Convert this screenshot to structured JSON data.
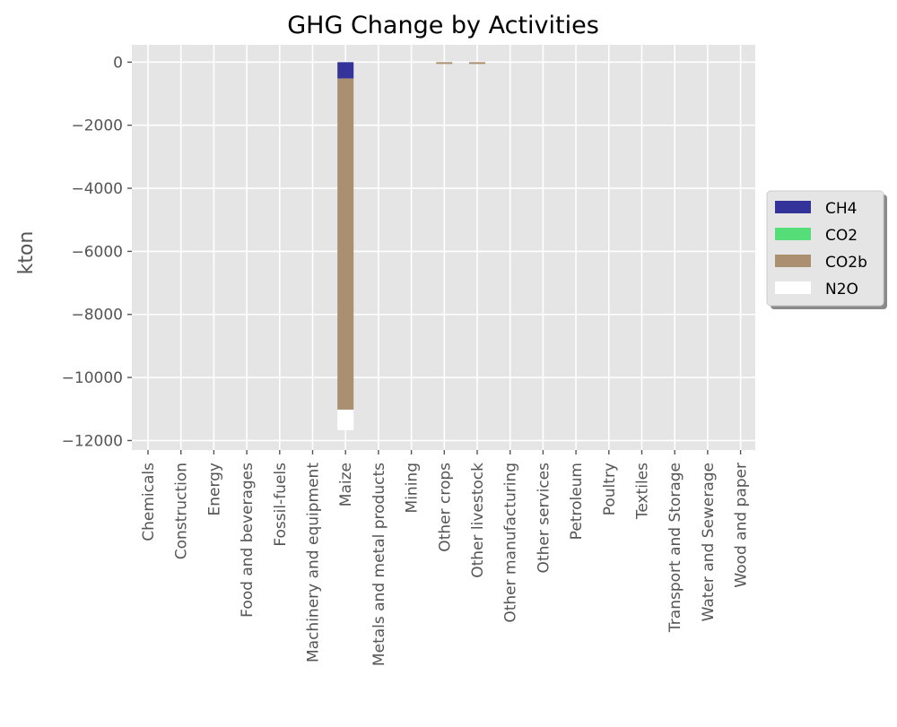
{
  "chart_data": {
    "type": "bar",
    "stacked": true,
    "title": "GHG Change by Activities",
    "xlabel": "",
    "ylabel": "kton",
    "ylim": [
      -12300,
      550
    ],
    "yticks": [
      0,
      -2000,
      -4000,
      -6000,
      -8000,
      -10000,
      -12000
    ],
    "ytick_labels": [
      "0",
      "−2000",
      "−4000",
      "−6000",
      "−8000",
      "−10000",
      "−12000"
    ],
    "grid": true,
    "legend_placement": "right-center",
    "categories": [
      "Chemicals",
      "Construction",
      "Energy",
      "Food and beverages",
      "Fossil-fuels",
      "Machinery and equipment",
      "Maize",
      "Metals and metal products",
      "Mining",
      "Other crops",
      "Other livestock",
      "Other manufacturing",
      "Other services",
      "Petroleum",
      "Poultry",
      "Textiles",
      "Transport and Storage",
      "Water and Sewerage",
      "Wood and paper"
    ],
    "series": [
      {
        "name": "CH4",
        "color": "#333399",
        "values": [
          0,
          0,
          0,
          0,
          0,
          0,
          -520,
          0,
          0,
          0,
          0,
          0,
          0,
          0,
          0,
          0,
          0,
          0,
          0
        ]
      },
      {
        "name": "CO2",
        "color": "#55dd77",
        "values": [
          0,
          0,
          0,
          0,
          0,
          0,
          0,
          0,
          0,
          0,
          0,
          0,
          0,
          0,
          0,
          0,
          0,
          0,
          0
        ]
      },
      {
        "name": "CO2b",
        "color": "#aa9070",
        "values": [
          0,
          0,
          0,
          0,
          0,
          0,
          -10500,
          0,
          0,
          -50,
          -50,
          0,
          0,
          0,
          0,
          0,
          0,
          0,
          0
        ]
      },
      {
        "name": "N2O",
        "color": "#ffffff",
        "values": [
          0,
          0,
          0,
          0,
          0,
          0,
          -650,
          0,
          0,
          0,
          0,
          0,
          0,
          0,
          0,
          0,
          0,
          0,
          0
        ]
      }
    ],
    "colors": {
      "plot_background": "#e5e5e5",
      "grid": "#ffffff",
      "tick_text": "#555555"
    }
  }
}
